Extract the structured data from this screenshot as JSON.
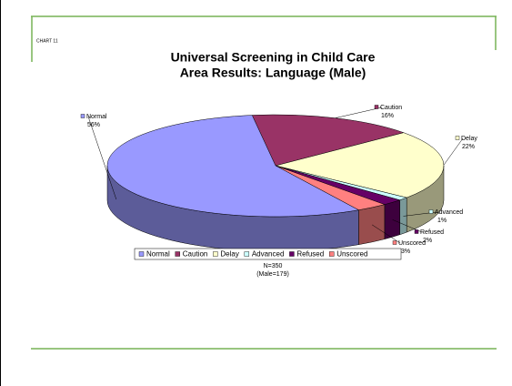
{
  "slide_label": "CHART 11",
  "chart_data": {
    "type": "pie3d",
    "title": [
      "Universal Screening in Child Care",
      "Area Results: Language (Male)"
    ],
    "categories": [
      "Normal",
      "Caution",
      "Delay",
      "Advanced",
      "Refused",
      "Unscored"
    ],
    "values": [
      56,
      16,
      22,
      1,
      2,
      3
    ],
    "value_labels": [
      "56%",
      "16%",
      "22%",
      "1%",
      "2%",
      "3%"
    ],
    "colors": [
      "#9999ff",
      "#993366",
      "#ffffcc",
      "#ccffff",
      "#660066",
      "#ff8080"
    ],
    "legend": "bottom",
    "notes": [
      "N=350",
      "(Male=179)"
    ]
  }
}
